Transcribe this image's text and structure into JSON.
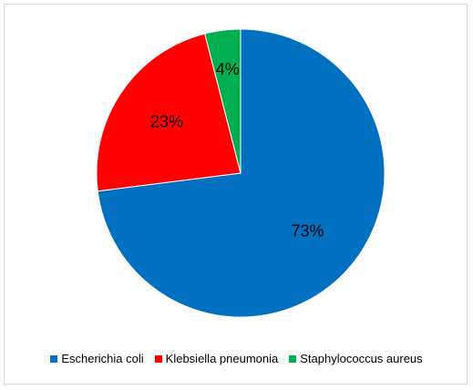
{
  "chart_data": {
    "type": "pie",
    "categories": [
      "Escherichia coli",
      "Klebsiella pneumonia",
      "Staphylococcus aureus"
    ],
    "values": [
      73,
      23,
      4
    ],
    "labels": [
      "73%",
      "23%",
      "4%"
    ],
    "colors": [
      "#0070c0",
      "#ff0000",
      "#00b050"
    ],
    "legend_position": "bottom",
    "start": "12 o'clock",
    "direction": "clockwise"
  }
}
